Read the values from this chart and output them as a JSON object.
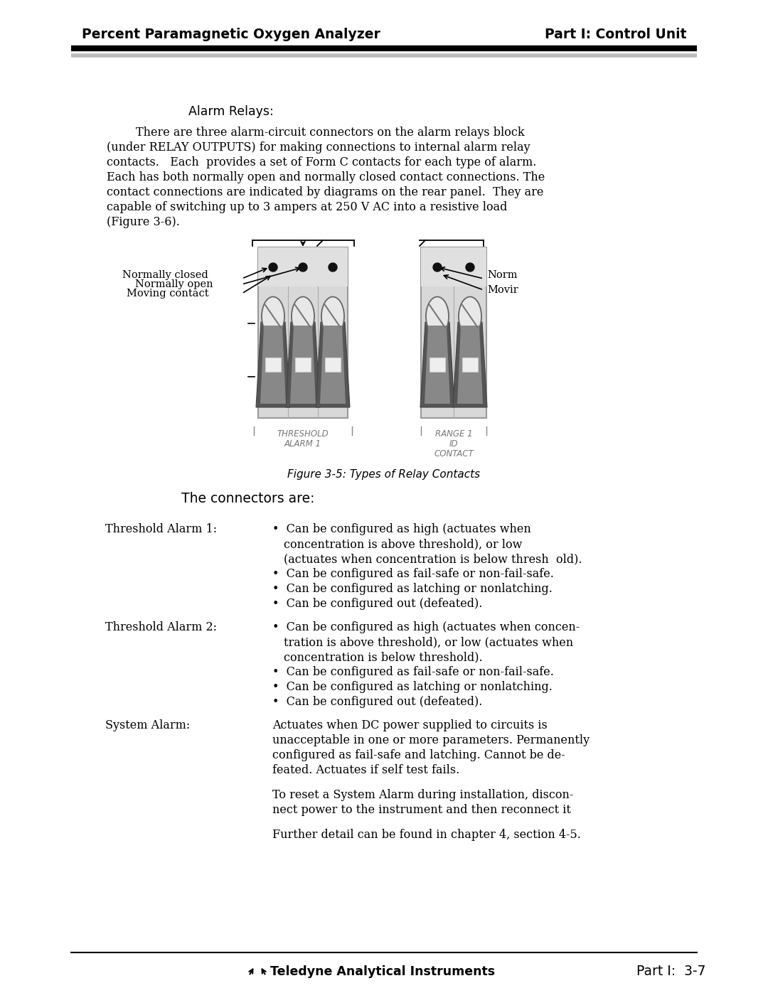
{
  "bg_color": "#ffffff",
  "header_left": "Percent Paramagnetic Oxygen Analyzer",
  "header_right": "Part I: Control Unit",
  "footer_center": "⬆⬆ Teledyne Analytical Instruments",
  "footer_right": "Part I:  3-7",
  "section_title": "Alarm Relays:",
  "figure_caption": "Figure 3-5: Types of Relay Contacts",
  "connectors_title": "The connectors are:",
  "para_lines": [
    "        There are three alarm-circuit connectors on the alarm relays block",
    "(under RELAY OUTPUTS) for making connections to internal alarm relay",
    "contacts.   Each  provides a set of Form C contacts for each type of alarm.",
    "Each has both normally open and normally closed contact connections. The",
    "contact connections are indicated by diagrams on the rear panel.  They are",
    "capable of switching up to 3 ampers at 250 V AC into a resistive load",
    "(Figure 3-6)."
  ],
  "bullets1": [
    "Can be configured as high (actuates when\nconcentration is above threshold), or low\n(actuates when concentration is below thresh  old).",
    "Can be configured as fail-safe or non-fail-safe.",
    "Can be configured as latching or nonlatching.",
    "Can be configured out (defeated)."
  ],
  "bullets2": [
    "Can be configured as high (actuates when concen-\ntration is above threshold), or low (actuates when\nconcentration is below threshold).",
    "Can be configured as fail-safe or non-fail-safe.",
    "Can be configured as latching or nonlatching.",
    "Can be configured out (defeated)."
  ],
  "sa_text1": [
    "Actuates when DC power supplied to circuits is",
    "unacceptable in one or more parameters. Permanently",
    "configured as fail-safe and latching. Cannot be de-",
    "feated. Actuates if self test fails."
  ],
  "sa_text2": [
    "To reset a System Alarm during installation, discon-",
    "nect power to the instrument and then reconnect it"
  ],
  "sa_text3": "Further detail can be found in chapter 4, section 4-5.",
  "left_label1": "THRESHOLD",
  "left_label2": "ALARM 1",
  "right_label1": "RANGE 1",
  "right_label2": "ID",
  "right_label3": "CONTACT",
  "nc_label": "Normally closed",
  "no_label": "Normally open",
  "mc_label": "Moving contact",
  "norm_label": "Norm",
  "movir_label": "Movir"
}
